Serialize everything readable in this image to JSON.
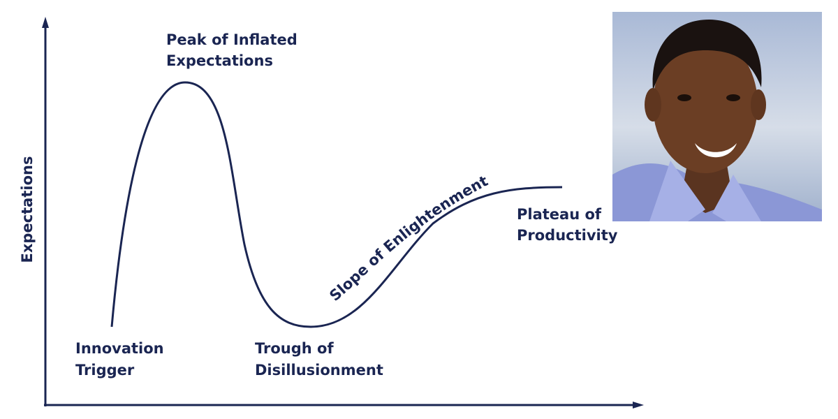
{
  "axis_label": "Expectations",
  "phases": [
    {
      "lines": [
        "Innovation",
        "Trigger"
      ]
    },
    {
      "lines": [
        "Peak of Inflated",
        "Expectations"
      ]
    },
    {
      "lines": [
        "Trough of",
        "Disillusionment"
      ]
    },
    {
      "lines": [
        "Slope of Enlightenment"
      ]
    },
    {
      "lines": [
        "Plateau of",
        "Productivity"
      ]
    }
  ]
}
